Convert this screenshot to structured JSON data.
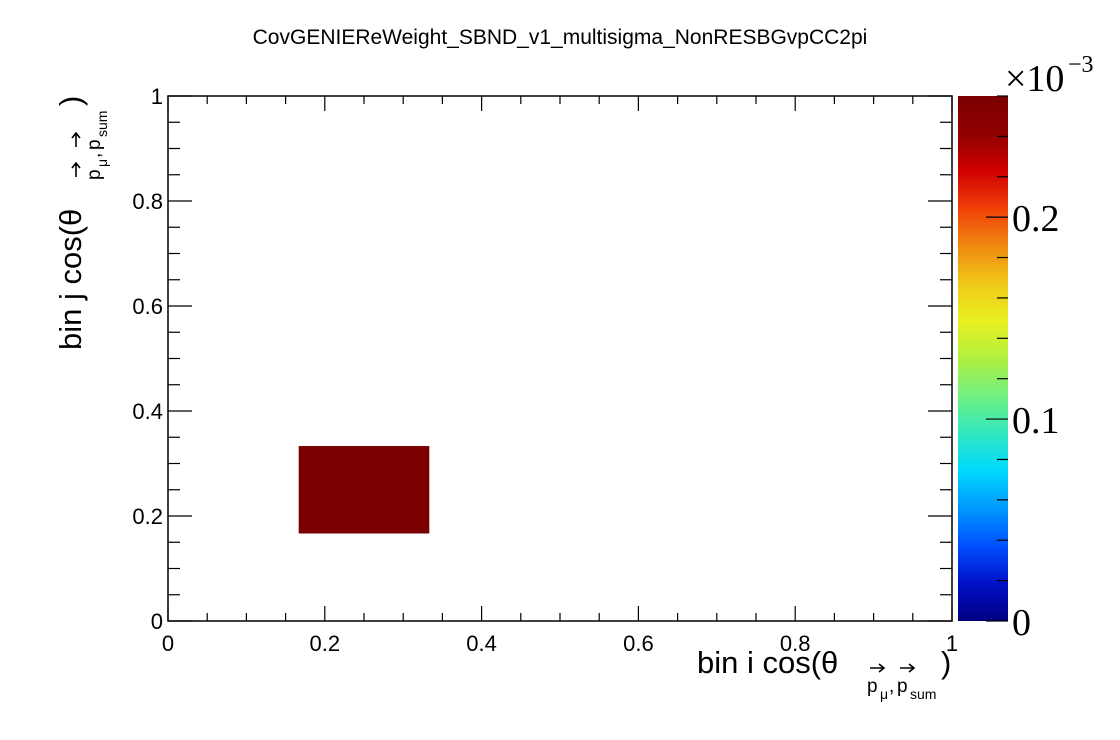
{
  "chart_data": {
    "type": "heatmap",
    "title": "CovGENIEReWeight_SBND_v1_multisigma_NonRESBGvpCC2pi",
    "xlabel": {
      "prefix": "bin i cos(θ",
      "sub1": "p",
      "sub1_sub": "μ",
      "comma": ",",
      "sub2": "p",
      "sub2_sub": "sum",
      "suffix": ")"
    },
    "ylabel": {
      "prefix": "bin j cos(θ",
      "sub1": "p",
      "sub1_sub": "μ",
      "comma": ",",
      "sub2": "p",
      "sub2_sub": "sum",
      "suffix": ")"
    },
    "xlim": [
      0,
      1
    ],
    "ylim": [
      0,
      1
    ],
    "x_ticks": [
      {
        "value": 0,
        "label": "0"
      },
      {
        "value": 0.2,
        "label": "0.2"
      },
      {
        "value": 0.4,
        "label": "0.4"
      },
      {
        "value": 0.6,
        "label": "0.6"
      },
      {
        "value": 0.8,
        "label": "0.8"
      },
      {
        "value": 1,
        "label": "1"
      }
    ],
    "y_ticks": [
      {
        "value": 0,
        "label": "0"
      },
      {
        "value": 0.2,
        "label": "0.2"
      },
      {
        "value": 0.4,
        "label": "0.4"
      },
      {
        "value": 0.6,
        "label": "0.6"
      },
      {
        "value": 0.8,
        "label": "0.8"
      },
      {
        "value": 1,
        "label": "1"
      }
    ],
    "cells": [
      {
        "x0": 0.1667,
        "x1": 0.3333,
        "y0": 0.1667,
        "y1": 0.3333,
        "value": 0.00026
      }
    ],
    "colorbar": {
      "min": 0,
      "max": 0.00026,
      "multiplier_label": "×10",
      "multiplier_exponent": "−3",
      "ticks": [
        {
          "value": 0,
          "label": "0"
        },
        {
          "value": 0.0001,
          "label": "0.1"
        },
        {
          "value": 0.0002,
          "label": "0.2"
        }
      ],
      "palette": [
        "#000080",
        "#0010c8",
        "#0050ff",
        "#0098ff",
        "#00d8ff",
        "#30e8c0",
        "#70f080",
        "#b0f040",
        "#e8f020",
        "#f0c818",
        "#f08810",
        "#f04008",
        "#d00000",
        "#900000",
        "#7a0000"
      ]
    },
    "grid": false
  }
}
